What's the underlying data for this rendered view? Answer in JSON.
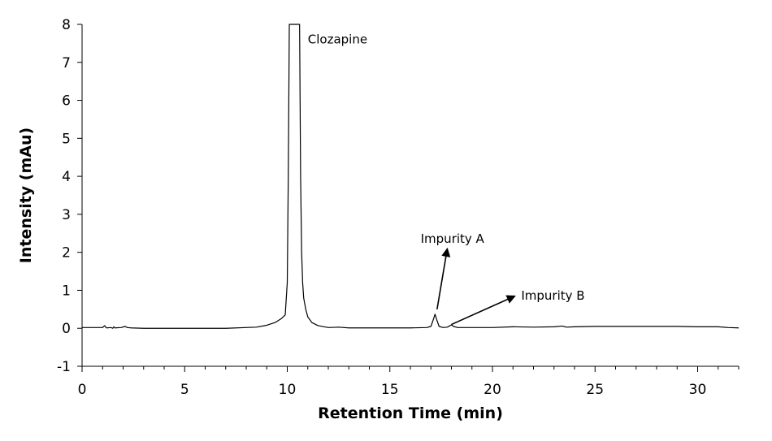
{
  "chart_data": {
    "type": "line",
    "title": "",
    "xlabel": "Retention Time (min)",
    "ylabel": "Intensity (mAu)",
    "xlim": [
      0,
      32
    ],
    "ylim": [
      -1,
      8
    ],
    "x_ticks": [
      0,
      5,
      10,
      15,
      20,
      25,
      30
    ],
    "y_ticks": [
      -1,
      0,
      1,
      2,
      3,
      4,
      5,
      6,
      7,
      8
    ],
    "grid": false,
    "legend": "none",
    "line_color": "#000000",
    "series": [
      {
        "x": [
          0,
          1.0,
          1.1,
          1.15,
          1.2,
          1.4,
          1.5,
          1.55,
          1.6,
          1.9,
          2.1,
          2.2,
          2.4,
          3,
          5,
          7,
          8.5,
          9.0,
          9.4,
          9.7,
          9.9,
          10.0,
          10.05,
          10.1,
          10.25,
          10.6,
          10.65,
          10.7,
          10.75,
          10.8,
          10.9,
          11.0,
          11.2,
          11.5,
          12.0,
          12.5,
          13,
          14,
          15,
          16,
          16.8,
          17.0,
          17.1,
          17.2,
          17.3,
          17.4,
          17.6,
          17.8,
          17.9,
          18.0,
          18.1,
          18.3,
          19,
          20,
          21,
          22,
          23,
          23.4,
          23.6,
          24,
          25,
          26,
          27,
          28,
          29,
          30,
          31,
          31.5,
          32
        ],
        "y": [
          0.02,
          0.02,
          0.07,
          0.03,
          0.01,
          0.02,
          0.0,
          0.04,
          0.01,
          0.02,
          0.05,
          0.02,
          0.01,
          0.0,
          0.0,
          0.0,
          0.03,
          0.08,
          0.15,
          0.25,
          0.35,
          1.2,
          4.0,
          8.0,
          8.0,
          8.0,
          4.0,
          2.0,
          1.2,
          0.8,
          0.5,
          0.3,
          0.15,
          0.07,
          0.02,
          0.03,
          0.01,
          0.01,
          0.01,
          0.01,
          0.02,
          0.05,
          0.2,
          0.37,
          0.2,
          0.05,
          0.02,
          0.03,
          0.06,
          0.09,
          0.05,
          0.02,
          0.02,
          0.02,
          0.04,
          0.03,
          0.04,
          0.06,
          0.03,
          0.04,
          0.05,
          0.05,
          0.05,
          0.05,
          0.05,
          0.04,
          0.04,
          0.02,
          0.01
        ]
      }
    ],
    "annotations": [
      {
        "text": "Clozapine",
        "x": 11.0,
        "y": 7.5
      },
      {
        "text": "Impurity A",
        "x": 16.5,
        "y": 2.25,
        "arrow_from": [
          17.3,
          0.5
        ],
        "arrow_to": [
          17.8,
          2.1
        ]
      },
      {
        "text": "Impurity B",
        "x": 21.4,
        "y": 0.75,
        "arrow_from": [
          18.0,
          0.1
        ],
        "arrow_to": [
          21.1,
          0.85
        ]
      }
    ]
  }
}
